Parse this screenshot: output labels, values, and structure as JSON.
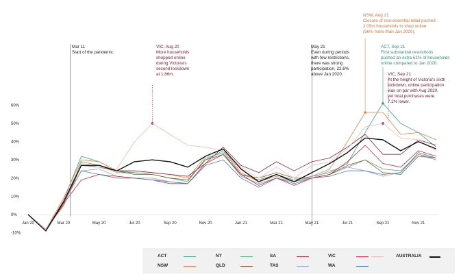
{
  "chart_data": {
    "type": "line",
    "x": [
      "Jan 20",
      "Feb 20",
      "Mar 20",
      "Apr 20",
      "May 20",
      "Jun 20",
      "Jul 20",
      "Aug 20",
      "Sep 20",
      "Oct 20",
      "Nov 20",
      "Dec 20",
      "Jan 21",
      "Feb 21",
      "Mar 21",
      "Apr 21",
      "May 21",
      "Jun 21",
      "Jul 21",
      "Aug 21",
      "Sep 21",
      "Oct 21",
      "Nov 21",
      "Dec 21"
    ],
    "x_tick_labels": [
      "Jan 20",
      "Mar 20",
      "May 20",
      "Jul 20",
      "Sep 20",
      "Nov 20",
      "Jan 21",
      "Mar 21",
      "May 21",
      "Jul 21",
      "Sep 21",
      "Nov 21"
    ],
    "y_tick_labels": [
      "-10%",
      "0%",
      "10%",
      "20%",
      "30%",
      "40%",
      "50%",
      "60%"
    ],
    "ylim": [
      -10,
      60
    ],
    "series": [
      {
        "name": "ACT",
        "color": "#3a9e86",
        "values": [
          0,
          -9,
          8,
          32,
          29,
          24,
          23,
          22,
          20,
          19,
          30,
          35,
          22,
          19,
          22,
          19,
          21,
          23,
          28,
          45,
          61,
          50,
          45,
          37
        ]
      },
      {
        "name": "NSW",
        "color": "#f08040",
        "values": [
          0,
          -8,
          9,
          30,
          29,
          24,
          24,
          23,
          22,
          20,
          32,
          36,
          23,
          18,
          21,
          18,
          21,
          25,
          40,
          56,
          56,
          44,
          45,
          41
        ]
      },
      {
        "name": "NT",
        "color": "#4caf7a",
        "values": [
          0,
          -9,
          6,
          29,
          27,
          23,
          23,
          22,
          20,
          18,
          31,
          34,
          21,
          17,
          20,
          18,
          20,
          22,
          26,
          30,
          25,
          24,
          33,
          30
        ]
      },
      {
        "name": "QLD",
        "color": "#8b5a2b",
        "values": [
          0,
          -8,
          5,
          27,
          26,
          24,
          22,
          22,
          20,
          19,
          30,
          33,
          22,
          20,
          23,
          20,
          20,
          22,
          27,
          30,
          23,
          22,
          32,
          31
        ]
      },
      {
        "name": "SA",
        "color": "#a0213a",
        "values": [
          0,
          -9,
          7,
          27,
          27,
          24,
          24,
          23,
          22,
          21,
          28,
          37,
          27,
          23,
          29,
          24,
          29,
          31,
          37,
          44,
          33,
          33,
          41,
          38
        ]
      },
      {
        "name": "TAS",
        "color": "#9aa6c8",
        "values": [
          0,
          -9,
          6,
          24,
          25,
          21,
          20,
          20,
          18,
          17,
          28,
          33,
          21,
          17,
          20,
          18,
          20,
          24,
          26,
          24,
          21,
          23,
          33,
          31
        ]
      },
      {
        "name": "VIC",
        "color": "#d8262e",
        "values": [
          0,
          -9,
          6,
          19,
          22,
          21,
          20,
          19,
          17,
          17,
          28,
          33,
          22,
          16,
          20,
          16,
          20,
          22,
          29,
          38,
          28,
          26,
          35,
          32
        ]
      },
      {
        "name": "WA",
        "color": "#4a7ac0",
        "values": [
          0,
          -8,
          7,
          24,
          22,
          20,
          20,
          19,
          18,
          17,
          27,
          30,
          20,
          15,
          20,
          17,
          20,
          21,
          24,
          24,
          22,
          23,
          34,
          31
        ]
      },
      {
        "name": "",
        "color": "#f2b8b8",
        "values": [
          0,
          -8,
          8,
          28,
          26,
          25,
          40,
          50,
          44,
          38,
          37,
          35,
          26,
          20,
          26,
          20,
          27,
          29,
          36,
          48,
          50,
          42,
          41,
          35
        ]
      },
      {
        "name": "AUSTRALIA",
        "color": "#111111",
        "values": [
          0,
          -9,
          7,
          27,
          27,
          24,
          29,
          30,
          29,
          26,
          32,
          36,
          25,
          18,
          22,
          18,
          23,
          28,
          34,
          42,
          41,
          35,
          40,
          36
        ]
      }
    ]
  },
  "annotations": {
    "mar11": {
      "head": "Mar 11",
      "lines": [
        "Start of the pandemic."
      ]
    },
    "vic_aug20": {
      "head": "VIC, Aug 20",
      "lines": [
        "More households",
        "shopped online",
        "during Victoria's",
        "second lockdown",
        "at 1.66m."
      ]
    },
    "may21": {
      "head": "May 21",
      "lines": [
        "Even during periods",
        "with few restrictions,",
        "there was strong",
        "participation, 22.6%",
        "above Jan 2020."
      ]
    },
    "nsw_aug21": {
      "head": "NSW, Aug 21",
      "lines": [
        "Closure of non-essential retail pushed",
        "2.05m households to shop online",
        "(56% more than Jan 2020)."
      ]
    },
    "act_sep21": {
      "head": "ACT, Sep 21",
      "lines": [
        "First substantial restrictions",
        "pushed an extra 61% of households",
        "online compared to Jan 2020."
      ]
    },
    "vic_sep21": {
      "head": "VIC, Sep 21",
      "lines": [
        "At the height of Victoria's sixth",
        "lockdown, online participation",
        "was on par with Aug 2020,",
        "yet total purchases were",
        "7.2% lower."
      ]
    }
  },
  "legend": [
    {
      "label": "ACT",
      "color": "#3a9e86"
    },
    {
      "label": "NT",
      "color": "#4caf7a"
    },
    {
      "label": "SA",
      "color": "#a0213a"
    },
    {
      "label": "VIC",
      "color": "#d8262e"
    },
    {
      "label": "",
      "color": "#f2b8b8"
    },
    {
      "label": "AUSTRALIA",
      "color": "#111111"
    },
    {
      "label": "NSW",
      "color": "#f08040"
    },
    {
      "label": "QLD",
      "color": "#8b5a2b"
    },
    {
      "label": "TAS",
      "color": "#9aa6c8"
    },
    {
      "label": "WA",
      "color": "#4a7ac0"
    }
  ]
}
